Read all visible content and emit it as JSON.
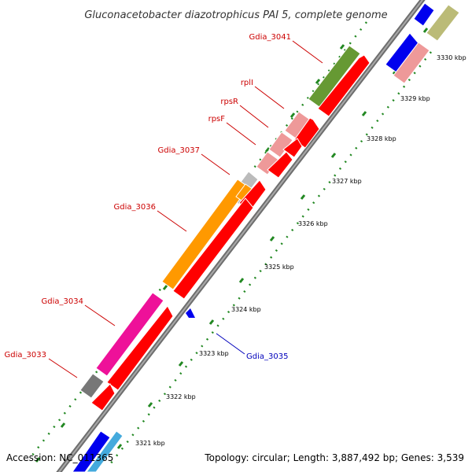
{
  "header": {
    "title": "Gluconacetobacter diazotrophicus PAI 5, complete genome"
  },
  "footer": {
    "accession": "Accession: NC_011365",
    "topology": "Topology: circular; Length: 3,887,492 bp; Genes: 3,539"
  },
  "colors": {
    "backbone": "#8a8a8a",
    "label_outer": "#cc0000",
    "label_inner": "#0000bb",
    "tick": "#228822",
    "cds": "#ff0000",
    "cds_light": "#ee9999",
    "orange": "#ff9900",
    "magenta": "#ee1199",
    "olive": "#669933",
    "gray": "#777777",
    "silver": "#bbbbbb",
    "blue": "#0000ee",
    "khaki": "#bbbb77"
  },
  "gene_labels": [
    {
      "text": "Gdia_3041",
      "side": "outer"
    },
    {
      "text": "rplI",
      "side": "outer"
    },
    {
      "text": "rpsR",
      "side": "outer"
    },
    {
      "text": "rpsF",
      "side": "outer"
    },
    {
      "text": "Gdia_3037",
      "side": "outer"
    },
    {
      "text": "Gdia_3036",
      "side": "outer"
    },
    {
      "text": "Gdia_3034",
      "side": "outer"
    },
    {
      "text": "Gdia_3033",
      "side": "outer"
    },
    {
      "text": "Gdia_3035",
      "side": "inner"
    }
  ],
  "ticks": [
    {
      "label": "3321 kbp"
    },
    {
      "label": "3322 kbp"
    },
    {
      "label": "3323 kbp"
    },
    {
      "label": "3324 kbp"
    },
    {
      "label": "3325 kbp"
    },
    {
      "label": "3326 kbp"
    },
    {
      "label": "3327 kbp"
    },
    {
      "label": "3328 kbp"
    },
    {
      "label": "3329 kbp"
    },
    {
      "label": "3330 kbp"
    }
  ]
}
